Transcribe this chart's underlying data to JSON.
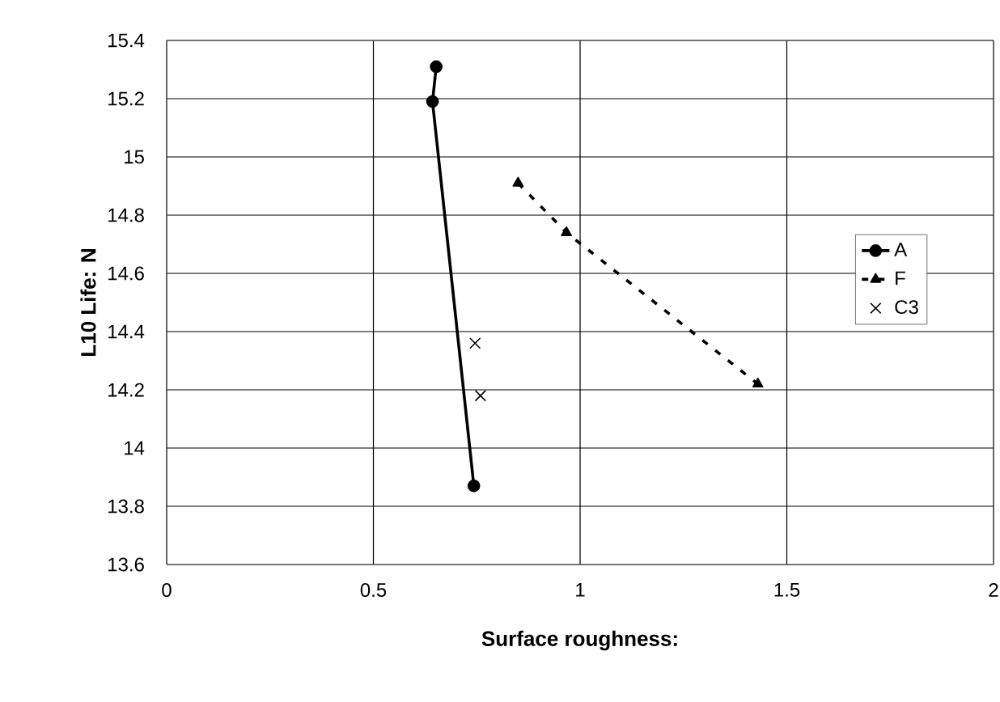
{
  "chart_data": {
    "type": "line",
    "xlabel": "Surface roughness:",
    "ylabel": "L10  Life: N",
    "xlim": [
      0,
      2
    ],
    "xticks": [
      0,
      0.5,
      1,
      1.5,
      2
    ],
    "ylim": [
      13.6,
      15.4
    ],
    "yticks": [
      13.6,
      13.8,
      14,
      14.2,
      14.4,
      14.6,
      14.8,
      15,
      15.2,
      15.4
    ],
    "grid": true,
    "legend": "right",
    "series": [
      {
        "name": "A",
        "color": "#000000",
        "marker": "circle",
        "line_style": "solid",
        "x": [
          0.652,
          0.643,
          0.743
        ],
        "values": [
          15.31,
          15.19,
          13.87
        ]
      },
      {
        "name": "F",
        "color": "#000000",
        "marker": "triangle",
        "line_style": "dashed",
        "x": [
          0.85,
          0.967,
          1.43
        ],
        "values": [
          14.91,
          14.74,
          14.22
        ]
      },
      {
        "name": "C3",
        "color": "#000000",
        "type": "scatter",
        "marker": "cross",
        "x": [
          0.746,
          0.759
        ],
        "values": [
          14.36,
          14.18
        ]
      }
    ]
  }
}
